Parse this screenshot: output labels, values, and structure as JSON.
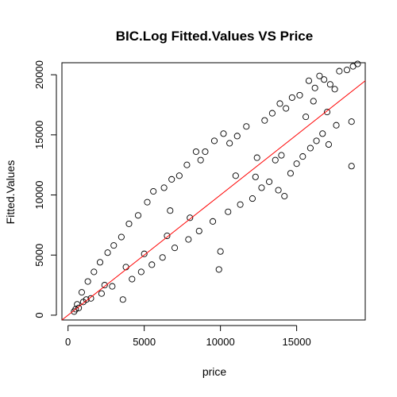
{
  "chart_data": {
    "type": "scatter",
    "title": "BIC.Log Fitted.Values VS Price",
    "xlabel": "price",
    "ylabel": "Fitted.Values",
    "xlim": [
      -400,
      19500
    ],
    "ylim": [
      -400,
      21000
    ],
    "x_ticks": [
      0,
      5000,
      10000,
      15000
    ],
    "y_ticks": [
      0,
      5000,
      10000,
      15000,
      20000
    ],
    "x_tick_labels": [
      "0",
      "5000",
      "10000",
      "15000"
    ],
    "y_tick_labels": [
      "0",
      "5000",
      "10000",
      "15000",
      "20000"
    ],
    "marker": "open-circle",
    "point_color": "#000000",
    "reference_line": {
      "intercept": 0,
      "slope": 1,
      "color": "#ff0000"
    },
    "grid": false,
    "points": [
      {
        "x": 18700,
        "y": 20700
      },
      {
        "x": 18300,
        "y": 20400
      },
      {
        "x": 17800,
        "y": 20300
      },
      {
        "x": 16500,
        "y": 19900
      },
      {
        "x": 16800,
        "y": 19600
      },
      {
        "x": 17200,
        "y": 19200
      },
      {
        "x": 15800,
        "y": 19500
      },
      {
        "x": 16200,
        "y": 18900
      },
      {
        "x": 17500,
        "y": 18800
      },
      {
        "x": 15200,
        "y": 18300
      },
      {
        "x": 14700,
        "y": 18100
      },
      {
        "x": 16100,
        "y": 17800
      },
      {
        "x": 18600,
        "y": 16100
      },
      {
        "x": 18600,
        "y": 12400
      },
      {
        "x": 17600,
        "y": 15800
      },
      {
        "x": 17000,
        "y": 16900
      },
      {
        "x": 15600,
        "y": 16500
      },
      {
        "x": 14300,
        "y": 17200
      },
      {
        "x": 13900,
        "y": 17600
      },
      {
        "x": 13400,
        "y": 16800
      },
      {
        "x": 12900,
        "y": 16200
      },
      {
        "x": 11700,
        "y": 15700
      },
      {
        "x": 11100,
        "y": 14900
      },
      {
        "x": 10600,
        "y": 14300
      },
      {
        "x": 10200,
        "y": 15100
      },
      {
        "x": 9600,
        "y": 14500
      },
      {
        "x": 9000,
        "y": 13600
      },
      {
        "x": 8400,
        "y": 13600
      },
      {
        "x": 8700,
        "y": 12900
      },
      {
        "x": 7800,
        "y": 12500
      },
      {
        "x": 7300,
        "y": 11600
      },
      {
        "x": 6800,
        "y": 11300
      },
      {
        "x": 6300,
        "y": 10600
      },
      {
        "x": 5600,
        "y": 10300
      },
      {
        "x": 5200,
        "y": 9400
      },
      {
        "x": 6700,
        "y": 8700
      },
      {
        "x": 4600,
        "y": 8300
      },
      {
        "x": 4000,
        "y": 7600
      },
      {
        "x": 3500,
        "y": 6500
      },
      {
        "x": 3000,
        "y": 5800
      },
      {
        "x": 2600,
        "y": 5200
      },
      {
        "x": 2100,
        "y": 4400
      },
      {
        "x": 1700,
        "y": 3600
      },
      {
        "x": 1300,
        "y": 2800
      },
      {
        "x": 900,
        "y": 1900
      },
      {
        "x": 600,
        "y": 900
      },
      {
        "x": 500,
        "y": 500
      },
      {
        "x": 700,
        "y": 600
      },
      {
        "x": 400,
        "y": 300
      },
      {
        "x": 1000,
        "y": 1100
      },
      {
        "x": 1500,
        "y": 1400
      },
      {
        "x": 2200,
        "y": 1800
      },
      {
        "x": 2900,
        "y": 2400
      },
      {
        "x": 3600,
        "y": 1300
      },
      {
        "x": 4200,
        "y": 3000
      },
      {
        "x": 4800,
        "y": 3600
      },
      {
        "x": 5500,
        "y": 4200
      },
      {
        "x": 6200,
        "y": 4800
      },
      {
        "x": 7000,
        "y": 5600
      },
      {
        "x": 7900,
        "y": 6300
      },
      {
        "x": 8600,
        "y": 7000
      },
      {
        "x": 9500,
        "y": 7800
      },
      {
        "x": 10000,
        "y": 5300
      },
      {
        "x": 9900,
        "y": 3800
      },
      {
        "x": 10500,
        "y": 8600
      },
      {
        "x": 11300,
        "y": 9200
      },
      {
        "x": 12100,
        "y": 9700
      },
      {
        "x": 12700,
        "y": 10600
      },
      {
        "x": 13200,
        "y": 11100
      },
      {
        "x": 13800,
        "y": 10400
      },
      {
        "x": 14200,
        "y": 9900
      },
      {
        "x": 14600,
        "y": 11800
      },
      {
        "x": 15000,
        "y": 12600
      },
      {
        "x": 15400,
        "y": 13200
      },
      {
        "x": 15900,
        "y": 13900
      },
      {
        "x": 16300,
        "y": 14500
      },
      {
        "x": 16700,
        "y": 15100
      },
      {
        "x": 17100,
        "y": 14200
      },
      {
        "x": 14000,
        "y": 13300
      },
      {
        "x": 12400,
        "y": 13100
      },
      {
        "x": 11000,
        "y": 11600
      },
      {
        "x": 8000,
        "y": 8100
      },
      {
        "x": 6500,
        "y": 6600
      },
      {
        "x": 5000,
        "y": 5100
      },
      {
        "x": 3800,
        "y": 4000
      },
      {
        "x": 2400,
        "y": 2500
      },
      {
        "x": 1200,
        "y": 1300
      },
      {
        "x": 19000,
        "y": 20900
      },
      {
        "x": 13600,
        "y": 12900
      },
      {
        "x": 12300,
        "y": 11500
      }
    ]
  }
}
